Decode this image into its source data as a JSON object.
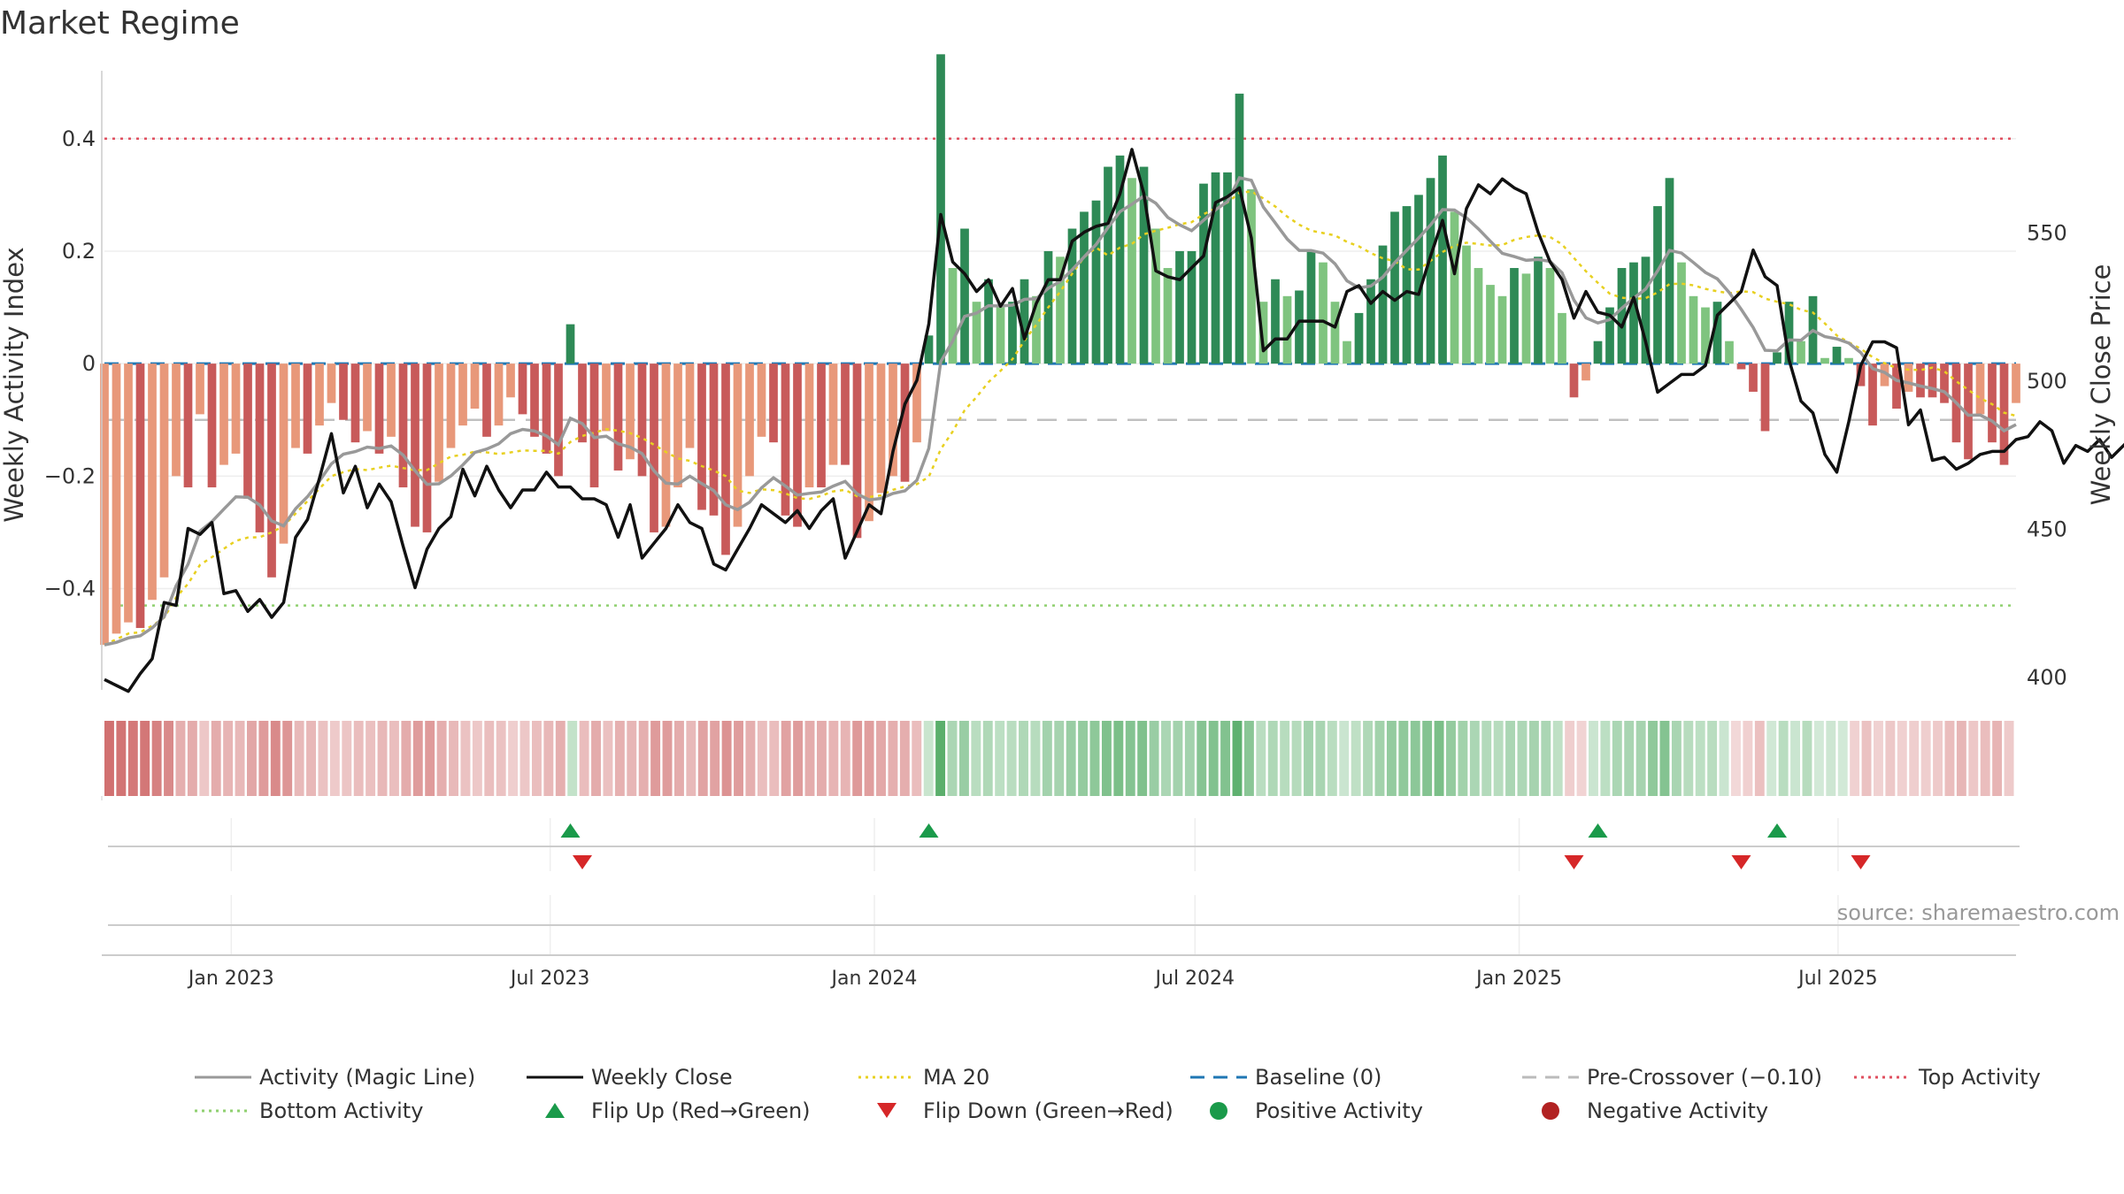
{
  "chart_data": {
    "type": "bar",
    "title": "Market Regime",
    "ylabel_left": "Weekly Activity Index",
    "ylabel_right": "Weekly Close Price",
    "left_ticks": [
      0.4,
      0.2,
      0,
      -0.2,
      -0.4
    ],
    "left_tick_labels": [
      "0.4",
      "0.2",
      "0",
      "−0.2",
      "−0.4"
    ],
    "left_ylim": [
      -0.58,
      0.56
    ],
    "right_ticks": [
      550,
      500,
      450,
      400
    ],
    "right_ylim": [
      395.5,
      612
    ],
    "date_ticks": [
      {
        "date": "2023-01-01",
        "label": "Jan 2023"
      },
      {
        "date": "2023-07-01",
        "label": "Jul 2023"
      },
      {
        "date": "2024-01-01",
        "label": "Jan 2024"
      },
      {
        "date": "2024-07-01",
        "label": "Jul 2024"
      },
      {
        "date": "2025-01-01",
        "label": "Jan 2025"
      },
      {
        "date": "2025-07-01",
        "label": "Jul 2025"
      }
    ],
    "start_date": "2022-10-21",
    "end_date": "2025-10-10",
    "reference_lines": {
      "top": 0.4,
      "bottom": -0.43,
      "baseline": 0,
      "pre_crossover": -0.1
    },
    "activity": [
      -0.5,
      -0.48,
      -0.46,
      -0.47,
      -0.42,
      -0.38,
      -0.2,
      -0.22,
      -0.09,
      -0.22,
      -0.18,
      -0.16,
      -0.24,
      -0.3,
      -0.38,
      -0.32,
      -0.15,
      -0.16,
      -0.11,
      -0.07,
      -0.1,
      -0.14,
      -0.12,
      -0.16,
      -0.13,
      -0.22,
      -0.29,
      -0.3,
      -0.21,
      -0.15,
      -0.11,
      -0.08,
      -0.13,
      -0.11,
      -0.06,
      -0.09,
      -0.13,
      -0.16,
      -0.2,
      0.07,
      -0.14,
      -0.22,
      -0.12,
      -0.19,
      -0.17,
      -0.2,
      -0.3,
      -0.29,
      -0.22,
      -0.15,
      -0.26,
      -0.27,
      -0.34,
      -0.29,
      -0.2,
      -0.13,
      -0.14,
      -0.27,
      -0.29,
      -0.22,
      -0.22,
      -0.18,
      -0.18,
      -0.31,
      -0.28,
      -0.23,
      -0.2,
      -0.21,
      -0.14,
      0.05,
      0.55,
      0.17,
      0.24,
      0.11,
      0.15,
      0.1,
      0.11,
      0.15,
      0.12,
      0.2,
      0.19,
      0.24,
      0.27,
      0.29,
      0.35,
      0.37,
      0.33,
      0.35,
      0.24,
      0.17,
      0.2,
      0.2,
      0.32,
      0.34,
      0.34,
      0.48,
      0.31,
      0.11,
      0.15,
      0.12,
      0.13,
      0.2,
      0.18,
      0.11,
      0.04,
      0.09,
      0.15,
      0.21,
      0.27,
      0.28,
      0.3,
      0.33,
      0.37,
      0.27,
      0.21,
      0.17,
      0.14,
      0.12,
      0.17,
      0.16,
      0.19,
      0.17,
      0.09,
      -0.06,
      -0.03,
      0.04,
      0.1,
      0.17,
      0.18,
      0.19,
      0.28,
      0.33,
      0.18,
      0.12,
      0.1,
      0.11,
      0.04,
      -0.01,
      -0.05,
      -0.12,
      0.02,
      0.11,
      0.04,
      0.12,
      0.01,
      0.03,
      0.01,
      -0.04,
      -0.11,
      -0.04,
      -0.08,
      -0.05,
      -0.06,
      -0.06,
      -0.07,
      -0.14,
      -0.17,
      -0.09,
      -0.14,
      -0.18,
      -0.07
    ],
    "weekly_close": [
      399,
      397,
      395,
      401,
      406,
      425,
      424,
      450,
      448,
      452,
      428,
      429,
      422,
      426,
      420,
      425,
      447,
      453,
      467,
      482,
      462,
      471,
      457,
      465,
      459,
      444,
      430,
      443,
      450,
      454,
      470,
      461,
      471,
      463,
      457,
      463,
      463,
      469,
      464,
      464,
      460,
      460,
      458,
      447,
      458,
      440,
      445,
      450,
      458,
      452,
      450,
      438,
      436,
      443,
      450,
      458,
      455,
      452,
      456,
      450,
      456,
      460,
      440,
      449,
      458,
      455,
      476,
      492,
      500,
      519,
      556,
      540,
      536,
      530,
      534,
      525,
      531,
      514,
      526,
      534,
      534,
      547,
      550,
      552,
      553,
      563,
      578,
      563,
      537,
      535,
      534,
      538,
      542,
      560,
      562,
      565,
      548,
      510,
      514,
      514,
      520,
      520,
      520,
      518,
      530,
      532,
      526,
      530,
      527,
      530,
      529,
      542,
      554,
      536,
      558,
      566,
      563,
      568,
      565,
      563,
      550,
      540,
      534,
      521,
      530,
      523,
      522,
      518,
      528,
      513,
      496,
      499,
      502,
      502,
      505,
      522,
      526,
      530,
      544,
      535,
      532,
      507,
      493,
      489,
      475,
      469,
      486,
      505,
      513,
      513,
      511,
      485,
      490,
      473,
      474,
      470,
      472,
      475,
      476,
      476,
      480,
      481,
      486,
      483,
      472,
      478,
      476,
      480,
      474,
      478,
      482,
      473,
      490
    ],
    "legend": [
      {
        "label": "Activity (Magic Line)",
        "kind": "solid",
        "color": "#999999"
      },
      {
        "label": "Weekly Close",
        "kind": "solid",
        "color": "#111111"
      },
      {
        "label": "MA 20",
        "kind": "dotted",
        "color": "#e8d020"
      },
      {
        "label": "Baseline (0)",
        "kind": "dashed",
        "color": "#1f77b4"
      },
      {
        "label": "Pre-Crossover (−0.10)",
        "kind": "dashed",
        "color": "#bbbbbb"
      },
      {
        "label": "Top Activity",
        "kind": "dotted",
        "color": "#e05060"
      },
      {
        "label": "Bottom Activity",
        "kind": "dotted",
        "color": "#90d070"
      },
      {
        "label": "Flip Up (Red→Green)",
        "kind": "tri-up",
        "color": "#1a9a4a"
      },
      {
        "label": "Flip Down (Green→Red)",
        "kind": "tri-down",
        "color": "#d62728"
      },
      {
        "label": "Positive Activity",
        "kind": "dot",
        "color": "#1a9a4a"
      },
      {
        "label": "Negative Activity",
        "kind": "dot",
        "color": "#b22222"
      }
    ],
    "annotations": [
      "source: sharemaestro.com"
    ]
  }
}
